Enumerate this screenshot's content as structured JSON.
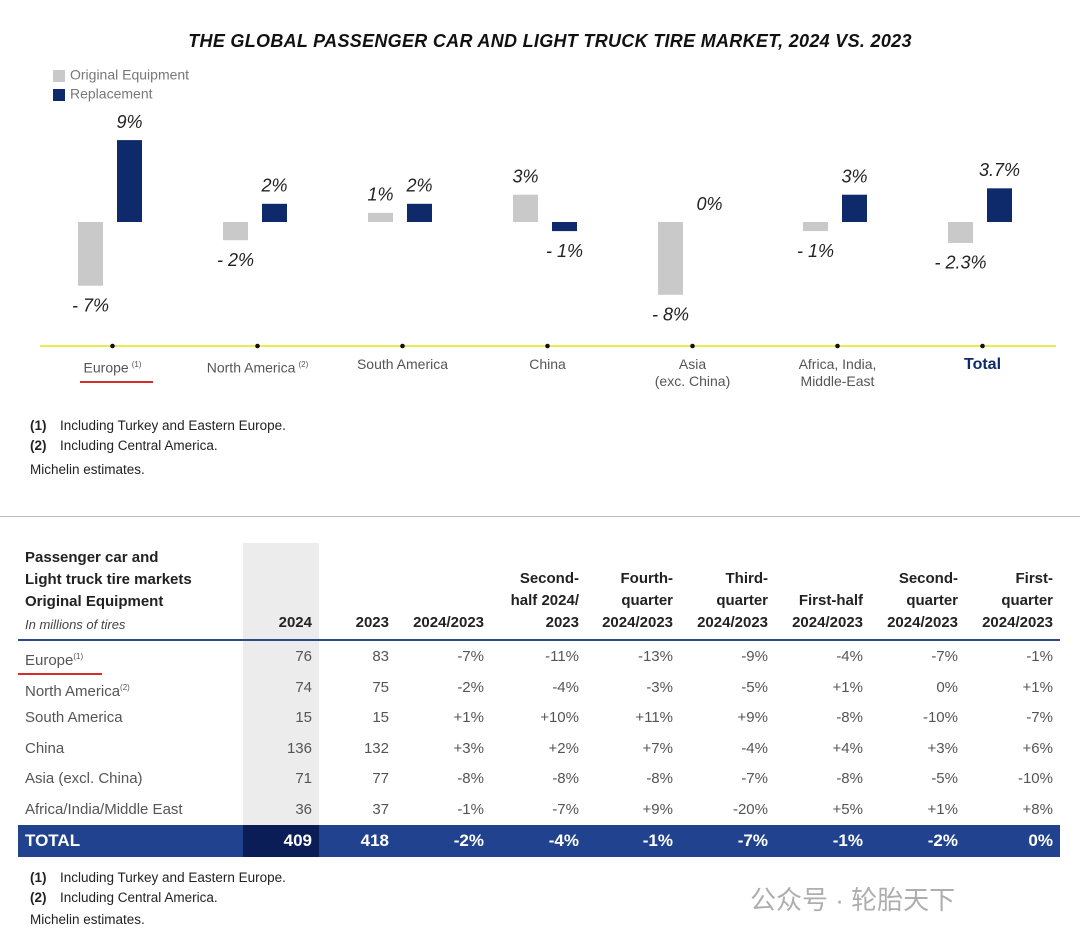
{
  "chart_data": {
    "type": "bar",
    "title": "THE GLOBAL PASSENGER CAR AND LIGHT TRUCK TIRE MARKET, 2024 VS. 2023",
    "categories": [
      "Europe",
      "North America",
      "South America",
      "China",
      "Asia\n(exc. China)",
      "Africa, India,\nMiddle-East",
      "Total"
    ],
    "category_notes": [
      "(1)",
      "(2)",
      null,
      null,
      null,
      null,
      null
    ],
    "series": [
      {
        "name": "Original Equipment",
        "color": "#c9c9c9",
        "values": [
          -7,
          -2,
          1,
          3,
          -8,
          -1,
          -2.3
        ],
        "value_labels": [
          "- 7%",
          "- 2%",
          "1%",
          "3%",
          "- 8%",
          "- 1%",
          "- 2.3%"
        ]
      },
      {
        "name": "Replacement",
        "color": "#0e2a6b",
        "values": [
          9,
          2,
          2,
          -1,
          0,
          3,
          3.7
        ],
        "value_labels": [
          "9%",
          "2%",
          "2%",
          "- 1%",
          "0%",
          "3%",
          "3.7%"
        ]
      }
    ],
    "legend": "top-left"
  },
  "chart_footnotes": [
    {
      "marker": "(1)",
      "text": "Including Turkey and Eastern Europe."
    },
    {
      "marker": "(2)",
      "text": "Including Central America."
    }
  ],
  "chart_source": "Michelin estimates.",
  "table": {
    "title": "Passenger car and\nLight truck tire markets\nOriginal Equipment",
    "unit": "In millions of tires",
    "columns": [
      "2024",
      "2023",
      "2024/2023",
      "Second-\nhalf 2024/\n2023",
      "Fourth-\nquarter\n2024/2023",
      "Third-\nquarter\n2024/2023",
      "First-half\n2024/2023",
      "Second-\nquarter\n2024/2023",
      "First-\nquarter\n2024/2023"
    ],
    "rows": [
      {
        "label": "Europe",
        "note": "(1)",
        "cells": [
          "76",
          "83",
          "-7%",
          "-11%",
          "-13%",
          "-9%",
          "-4%",
          "-7%",
          "-1%"
        ]
      },
      {
        "label": "North America",
        "note": "(2)",
        "cells": [
          "74",
          "75",
          "-2%",
          "-4%",
          "-3%",
          "-5%",
          "+1%",
          "0%",
          "+1%"
        ]
      },
      {
        "label": "South America",
        "cells": [
          "15",
          "15",
          "+1%",
          "+10%",
          "+11%",
          "+9%",
          "-8%",
          "-10%",
          "-7%"
        ]
      },
      {
        "label": "China",
        "cells": [
          "136",
          "132",
          "+3%",
          "+2%",
          "+7%",
          "-4%",
          "+4%",
          "+3%",
          "+6%"
        ]
      },
      {
        "label": "Asia (excl. China)",
        "cells": [
          "71",
          "77",
          "-8%",
          "-8%",
          "-8%",
          "-7%",
          "-8%",
          "-5%",
          "-10%"
        ]
      },
      {
        "label": "Africa/India/Middle East",
        "cells": [
          "36",
          "37",
          "-1%",
          "-7%",
          "+9%",
          "-20%",
          "+5%",
          "+1%",
          "+8%"
        ]
      }
    ],
    "total_row": {
      "label": "TOTAL",
      "cells": [
        "409",
        "418",
        "-2%",
        "-4%",
        "-1%",
        "-7%",
        "-1%",
        "-2%",
        "0%"
      ]
    },
    "footnotes": [
      {
        "marker": "(1)",
        "text": "Including Turkey and Eastern Europe."
      },
      {
        "marker": "(2)",
        "text": "Including Central America."
      }
    ],
    "source": "Michelin estimates."
  },
  "watermark": "公众号 · 轮胎天下"
}
